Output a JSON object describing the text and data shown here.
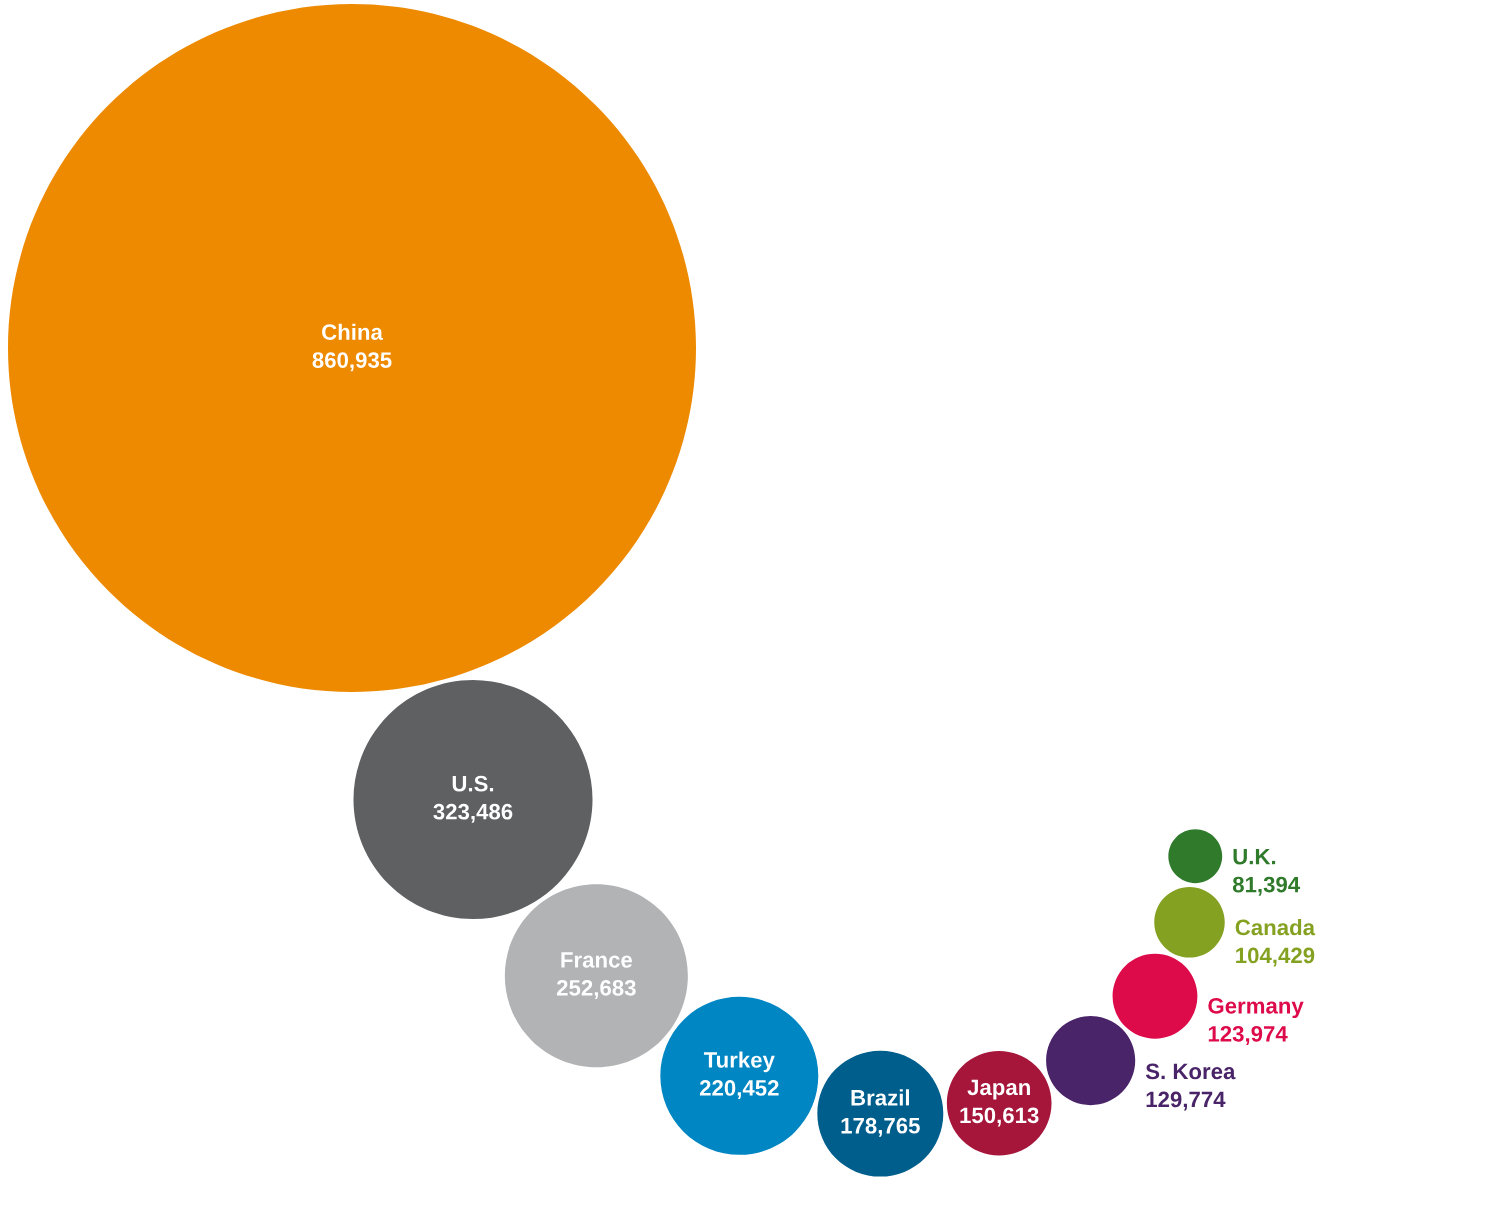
{
  "chart_data": {
    "type": "other",
    "categories": [
      "China",
      "U.S.",
      "France",
      "Turkey",
      "Brazil",
      "Japan",
      "S. Korea",
      "Germany",
      "Canada",
      "U.K."
    ],
    "values": [
      860935,
      323486,
      252683,
      220452,
      178765,
      150613,
      129774,
      123974,
      104429,
      81394
    ],
    "colors": [
      "#ee8a00",
      "#5f6062",
      "#b1b3b5",
      "#0086c3",
      "#005e8c",
      "#a6163b",
      "#4a2468",
      "#de0b4b",
      "#85a121",
      "#2f7a2b"
    ],
    "value_labels": [
      "860,935",
      "323,486",
      "252,683",
      "220,452",
      "178,765",
      "150,613",
      "129,774",
      "123,974",
      "104,429",
      "81,394"
    ]
  }
}
